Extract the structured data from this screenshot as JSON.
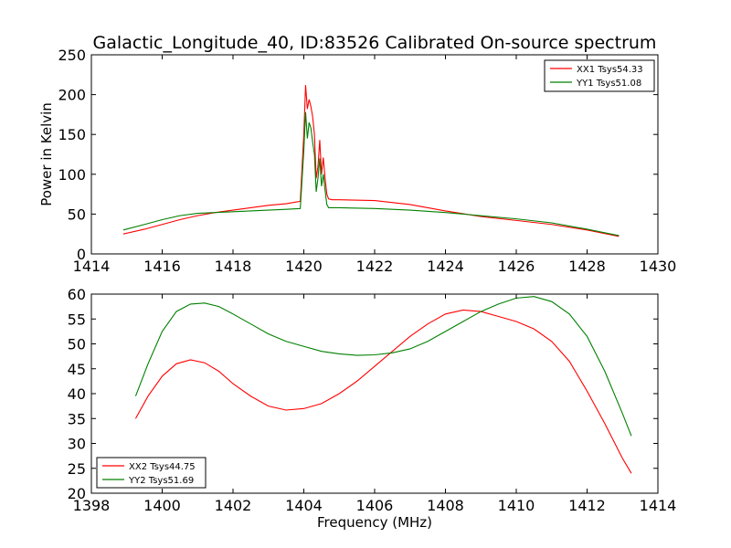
{
  "title": "Galactic_Longitude_40, ID:83526 Calibrated On-source spectrum",
  "colors": {
    "xx": "#ff0000",
    "yy": "#008000"
  },
  "chart_data": [
    {
      "type": "line",
      "xlabel": "",
      "ylabel": "Power in Kelvin",
      "xlim": [
        1414,
        1430
      ],
      "ylim": [
        0,
        250
      ],
      "xticks": [
        1414,
        1416,
        1418,
        1420,
        1422,
        1424,
        1426,
        1428,
        1430
      ],
      "yticks": [
        0,
        50,
        100,
        150,
        200,
        250
      ],
      "legend_position": "top-right",
      "series": [
        {
          "name": "XX1 Tsys54.33",
          "color": "#ff0000",
          "x": [
            1414.9,
            1415.5,
            1416,
            1416.5,
            1417,
            1417.5,
            1418,
            1418.5,
            1419,
            1419.5,
            1419.9,
            1420.0,
            1420.05,
            1420.1,
            1420.15,
            1420.2,
            1420.25,
            1420.3,
            1420.35,
            1420.4,
            1420.45,
            1420.5,
            1420.55,
            1420.6,
            1420.65,
            1420.7,
            1420.8,
            1421,
            1422,
            1423,
            1424,
            1425,
            1426,
            1427,
            1428,
            1428.9
          ],
          "y": [
            25,
            31,
            37,
            43,
            48,
            52,
            55,
            58,
            61,
            63,
            66,
            150,
            212,
            182,
            194,
            185,
            172,
            150,
            95,
            110,
            143,
            100,
            121,
            95,
            75,
            69,
            68,
            68,
            67,
            62,
            54,
            47,
            42,
            37,
            30,
            22
          ]
        },
        {
          "name": "YY1 Tsys51.08",
          "color": "#008000",
          "x": [
            1414.9,
            1415.5,
            1416,
            1416.5,
            1417,
            1417.5,
            1418,
            1418.5,
            1419,
            1419.5,
            1419.9,
            1420.0,
            1420.05,
            1420.1,
            1420.15,
            1420.2,
            1420.25,
            1420.3,
            1420.35,
            1420.4,
            1420.45,
            1420.5,
            1420.55,
            1420.6,
            1420.65,
            1420.7,
            1420.8,
            1421,
            1422,
            1423,
            1424,
            1425,
            1426,
            1427,
            1428,
            1428.9
          ],
          "y": [
            30,
            37,
            43,
            48,
            51,
            52,
            53,
            54,
            55,
            56,
            57,
            130,
            178,
            145,
            165,
            158,
            140,
            125,
            78,
            95,
            120,
            85,
            100,
            80,
            62,
            58,
            58,
            58,
            57,
            55,
            52,
            48,
            44,
            39,
            31,
            23
          ]
        }
      ]
    },
    {
      "type": "line",
      "xlabel": "Frequency (MHz)",
      "ylabel": "",
      "xlim": [
        1398,
        1414
      ],
      "ylim": [
        20,
        60
      ],
      "xticks": [
        1398,
        1400,
        1402,
        1404,
        1406,
        1408,
        1410,
        1412,
        1414
      ],
      "yticks": [
        20,
        25,
        30,
        35,
        40,
        45,
        50,
        55,
        60
      ],
      "legend_position": "bottom-left",
      "series": [
        {
          "name": "XX2 Tsys44.75",
          "color": "#ff0000",
          "x": [
            1399.25,
            1399.6,
            1400.0,
            1400.4,
            1400.8,
            1401.2,
            1401.6,
            1402.0,
            1402.5,
            1403.0,
            1403.5,
            1404.0,
            1404.5,
            1405.0,
            1405.5,
            1406.0,
            1406.5,
            1407.0,
            1407.5,
            1408.0,
            1408.5,
            1409.0,
            1409.5,
            1410.0,
            1410.5,
            1411.0,
            1411.5,
            1412.0,
            1412.5,
            1413.0,
            1413.25
          ],
          "y": [
            35,
            39.5,
            43.5,
            46,
            46.8,
            46.2,
            44.5,
            42,
            39.5,
            37.5,
            36.7,
            37,
            38,
            40,
            42.5,
            45.5,
            48.5,
            51.5,
            54,
            56,
            56.8,
            56.5,
            55.5,
            54.5,
            53,
            50.5,
            46.5,
            40.5,
            34,
            27,
            24
          ]
        },
        {
          "name": "YY2 Tsys51.69",
          "color": "#008000",
          "x": [
            1399.25,
            1399.6,
            1400.0,
            1400.4,
            1400.8,
            1401.2,
            1401.6,
            1402.0,
            1402.5,
            1403.0,
            1403.5,
            1404.0,
            1404.5,
            1405.0,
            1405.5,
            1406.0,
            1406.5,
            1407.0,
            1407.5,
            1408.0,
            1408.5,
            1409.0,
            1409.5,
            1410.0,
            1410.5,
            1411.0,
            1411.5,
            1412.0,
            1412.5,
            1413.0,
            1413.25
          ],
          "y": [
            39.5,
            46,
            52.5,
            56.5,
            58,
            58.2,
            57.5,
            56,
            54,
            52,
            50.5,
            49.5,
            48.5,
            48,
            47.7,
            47.8,
            48.2,
            49,
            50.5,
            52.5,
            54.5,
            56.5,
            58,
            59.2,
            59.5,
            58.5,
            56,
            51.5,
            44.5,
            36,
            31.5
          ]
        }
      ]
    }
  ]
}
